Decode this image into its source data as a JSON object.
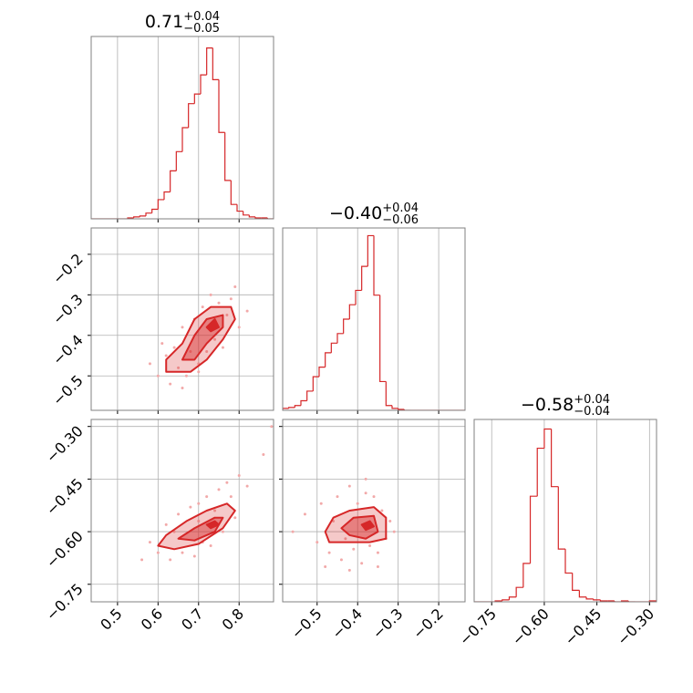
{
  "chart_data": {
    "type": "corner",
    "color": "#d62728",
    "point_color": "#f2a9a9",
    "grid": true,
    "parameters": [
      {
        "title": {
          "value": "0.71",
          "upper": "+0.04",
          "lower": "−0.05"
        },
        "lim": [
          0.435,
          0.885
        ],
        "ticks": [
          0.5,
          0.6,
          0.7,
          0.8
        ]
      },
      {
        "title": {
          "value": "−0.40",
          "upper": "+0.04",
          "lower": "−0.06"
        },
        "lim": [
          -0.585,
          -0.135
        ],
        "ticks": [
          {
            "value": -0.5,
            "label": "−0.5"
          },
          {
            "value": -0.4,
            "label": "−0.4"
          },
          {
            "value": -0.3,
            "label": "−0.3"
          },
          {
            "value": -0.2,
            "label": "−0.2"
          }
        ]
      },
      {
        "title": {
          "value": "−0.58",
          "upper": "+0.04",
          "lower": "−0.04"
        },
        "lim": [
          -0.8,
          -0.28
        ],
        "ticks": [
          {
            "value": -0.75,
            "label": "−0.75"
          },
          {
            "value": -0.6,
            "label": "−0.60"
          },
          {
            "value": -0.45,
            "label": "−0.45"
          },
          {
            "value": -0.3,
            "label": "−0.30"
          }
        ]
      }
    ],
    "histograms": [
      {
        "bins": [
          0.435,
          0.45,
          0.465,
          0.48,
          0.495,
          0.51,
          0.525,
          0.54,
          0.555,
          0.57,
          0.585,
          0.6,
          0.615,
          0.63,
          0.645,
          0.66,
          0.675,
          0.69,
          0.705,
          0.72,
          0.735,
          0.75,
          0.765,
          0.78,
          0.795,
          0.81,
          0.825,
          0.84,
          0.855,
          0.87,
          0.885
        ],
        "counts": [
          0,
          0,
          0,
          0,
          0,
          0,
          1,
          2,
          3,
          6,
          10,
          20,
          28,
          50,
          70,
          95,
          120,
          130,
          150,
          178,
          145,
          90,
          40,
          15,
          8,
          4,
          2,
          1,
          1,
          0
        ],
        "ylim": [
          0,
          190
        ]
      },
      {
        "bins": [
          -0.585,
          -0.57,
          -0.555,
          -0.54,
          -0.525,
          -0.51,
          -0.495,
          -0.48,
          -0.465,
          -0.45,
          -0.435,
          -0.42,
          -0.405,
          -0.39,
          -0.375,
          -0.36,
          -0.345,
          -0.33,
          -0.315,
          -0.3,
          -0.285,
          -0.27,
          -0.255,
          -0.24,
          -0.225,
          -0.21,
          -0.195,
          -0.18,
          -0.165,
          -0.15,
          -0.135
        ],
        "counts": [
          2,
          3,
          5,
          10,
          20,
          35,
          45,
          60,
          70,
          80,
          95,
          110,
          125,
          150,
          182,
          120,
          30,
          5,
          2,
          1,
          0,
          0,
          0,
          0,
          0,
          0,
          0,
          0,
          0,
          0
        ],
        "ylim": [
          0,
          190
        ]
      },
      {
        "bins": [
          -0.8,
          -0.78,
          -0.76,
          -0.74,
          -0.72,
          -0.7,
          -0.68,
          -0.66,
          -0.64,
          -0.62,
          -0.6,
          -0.58,
          -0.56,
          -0.54,
          -0.52,
          -0.5,
          -0.48,
          -0.46,
          -0.44,
          -0.42,
          -0.4,
          -0.38,
          -0.36,
          -0.34,
          -0.32,
          -0.3,
          -0.28
        ],
        "counts": [
          0,
          0,
          0,
          1,
          2,
          5,
          15,
          40,
          110,
          160,
          180,
          120,
          55,
          30,
          12,
          5,
          3,
          2,
          1,
          1,
          0,
          1,
          0,
          0,
          0,
          1
        ],
        "ylim": [
          0,
          190
        ]
      }
    ],
    "pairs": [
      {
        "points": {
          "x": [
            0.58,
            0.6,
            0.62,
            0.63,
            0.64,
            0.65,
            0.66,
            0.67,
            0.68,
            0.69,
            0.7,
            0.71,
            0.72,
            0.73,
            0.74,
            0.75,
            0.76,
            0.77,
            0.78,
            0.8,
            0.82,
            0.61,
            0.66,
            0.7,
            0.79
          ],
          "y": [
            -0.47,
            -0.5,
            -0.45,
            -0.52,
            -0.43,
            -0.48,
            -0.38,
            -0.5,
            -0.44,
            -0.36,
            -0.47,
            -0.33,
            -0.44,
            -0.3,
            -0.41,
            -0.32,
            -0.43,
            -0.35,
            -0.31,
            -0.38,
            -0.34,
            -0.42,
            -0.53,
            -0.49,
            -0.28
          ]
        },
        "contours": [
          {
            "x": [
              0.62,
              0.62,
              0.66,
              0.69,
              0.73,
              0.78,
              0.79,
              0.76,
              0.72,
              0.68
            ],
            "y": [
              -0.49,
              -0.46,
              -0.42,
              -0.36,
              -0.33,
              -0.33,
              -0.36,
              -0.41,
              -0.46,
              -0.49
            ]
          },
          {
            "x": [
              0.66,
              0.69,
              0.72,
              0.76,
              0.76,
              0.72,
              0.69
            ],
            "y": [
              -0.46,
              -0.4,
              -0.36,
              -0.35,
              -0.38,
              -0.42,
              -0.46
            ]
          },
          {
            "x": [
              0.72,
              0.74,
              0.75,
              0.73
            ],
            "y": [
              -0.38,
              -0.36,
              -0.38,
              -0.39
            ]
          }
        ]
      },
      {
        "points": {
          "x": [
            0.56,
            0.58,
            0.6,
            0.62,
            0.63,
            0.65,
            0.66,
            0.68,
            0.69,
            0.7,
            0.71,
            0.72,
            0.74,
            0.75,
            0.76,
            0.77,
            0.78,
            0.8,
            0.82,
            0.86,
            0.88,
            0.64,
            0.7,
            0.73,
            0.79
          ],
          "y": [
            -0.68,
            -0.63,
            -0.66,
            -0.58,
            -0.68,
            -0.55,
            -0.66,
            -0.53,
            -0.67,
            -0.52,
            -0.63,
            -0.5,
            -0.54,
            -0.48,
            -0.6,
            -0.46,
            -0.5,
            -0.44,
            -0.47,
            -0.38,
            -0.3,
            -0.6,
            -0.57,
            -0.64,
            -0.56
          ]
        },
        "contours": [
          {
            "x": [
              0.6,
              0.62,
              0.67,
              0.72,
              0.77,
              0.79,
              0.76,
              0.7,
              0.64
            ],
            "y": [
              -0.64,
              -0.61,
              -0.57,
              -0.54,
              -0.52,
              -0.54,
              -0.59,
              -0.635,
              -0.65
            ]
          },
          {
            "x": [
              0.65,
              0.69,
              0.74,
              0.76,
              0.74,
              0.69
            ],
            "y": [
              -0.62,
              -0.59,
              -0.56,
              -0.56,
              -0.6,
              -0.625
            ]
          },
          {
            "x": [
              0.72,
              0.74,
              0.75,
              0.73
            ],
            "y": [
              -0.58,
              -0.57,
              -0.58,
              -0.59
            ]
          }
        ]
      },
      {
        "points": {
          "x": [
            -0.56,
            -0.53,
            -0.5,
            -0.49,
            -0.47,
            -0.46,
            -0.45,
            -0.44,
            -0.43,
            -0.42,
            -0.41,
            -0.4,
            -0.39,
            -0.38,
            -0.37,
            -0.36,
            -0.35,
            -0.34,
            -0.33,
            -0.32,
            -0.31,
            -0.48,
            -0.42,
            -0.38,
            -0.35
          ],
          "y": [
            -0.6,
            -0.55,
            -0.63,
            -0.52,
            -0.66,
            -0.57,
            -0.5,
            -0.68,
            -0.62,
            -0.47,
            -0.65,
            -0.52,
            -0.69,
            -0.45,
            -0.64,
            -0.5,
            -0.66,
            -0.54,
            -0.62,
            -0.57,
            -0.6,
            -0.7,
            -0.71,
            -0.49,
            -0.7
          ]
        },
        "contours": [
          {
            "x": [
              -0.48,
              -0.46,
              -0.42,
              -0.36,
              -0.33,
              -0.33,
              -0.37,
              -0.42,
              -0.47
            ],
            "y": [
              -0.6,
              -0.56,
              -0.54,
              -0.53,
              -0.56,
              -0.62,
              -0.63,
              -0.63,
              -0.63
            ]
          },
          {
            "x": [
              -0.44,
              -0.41,
              -0.36,
              -0.35,
              -0.38,
              -0.42
            ],
            "y": [
              -0.59,
              -0.56,
              -0.555,
              -0.6,
              -0.62,
              -0.61
            ]
          },
          {
            "x": [
              -0.39,
              -0.37,
              -0.36,
              -0.38
            ],
            "y": [
              -0.58,
              -0.57,
              -0.585,
              -0.595
            ]
          }
        ]
      }
    ]
  }
}
